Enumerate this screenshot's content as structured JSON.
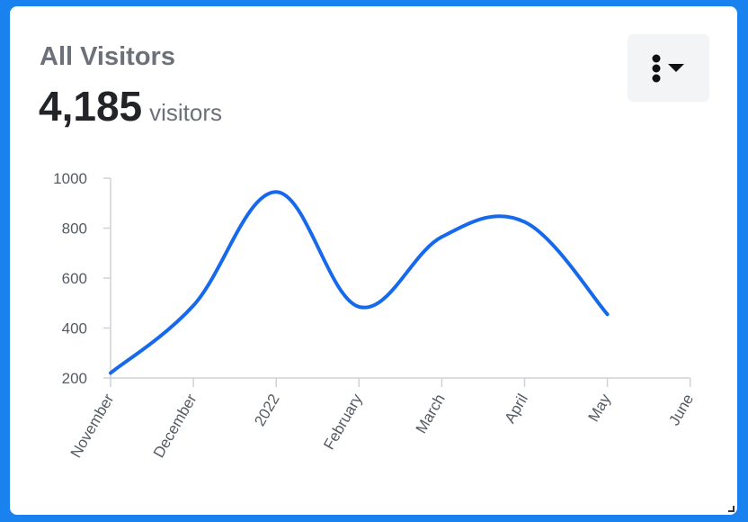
{
  "card": {
    "title": "All Visitors",
    "total": "4,185",
    "total_unit": "visitors"
  },
  "menu": {
    "icon": "kebab-dropdown-icon"
  },
  "colors": {
    "line": "#1769ec",
    "background": "#1a82ee",
    "axis": "#cfd2d6"
  },
  "chart_data": {
    "type": "line",
    "x": [
      "November",
      "December",
      "2022",
      "February",
      "March",
      "April",
      "May",
      "June"
    ],
    "series": [
      {
        "values": [
          220,
          490,
          945,
          485,
          765,
          825,
          455,
          null
        ]
      }
    ],
    "ylim": [
      200,
      1000
    ],
    "yticks": [
      1000,
      800,
      600,
      400,
      200
    ],
    "grid": false,
    "legend": "none"
  }
}
